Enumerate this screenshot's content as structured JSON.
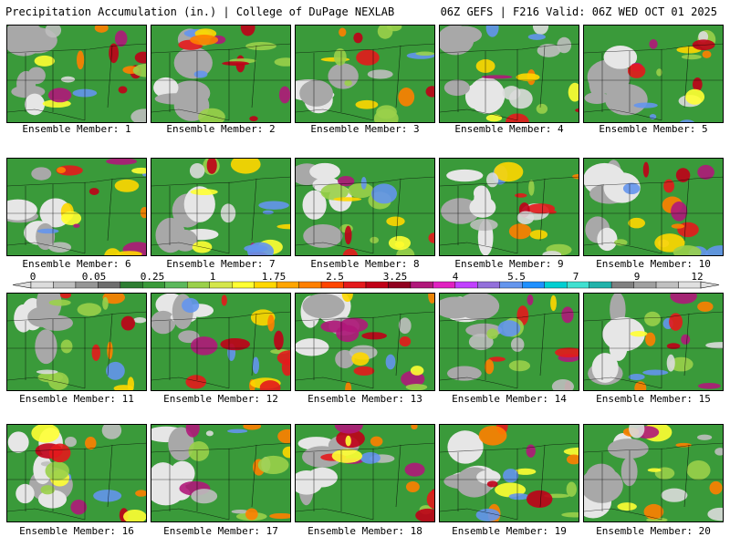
{
  "header": {
    "title_left": "Precipitation Accumulation (in.) | College of DuPage NEXLAB",
    "title_right": "06Z GEFS | F216 Valid: 06Z WED OCT 01 2025"
  },
  "members": [
    {
      "label": "Ensemble Member: 1"
    },
    {
      "label": "Ensemble Member: 2"
    },
    {
      "label": "Ensemble Member: 3"
    },
    {
      "label": "Ensemble Member: 4"
    },
    {
      "label": "Ensemble Member: 5"
    },
    {
      "label": "Ensemble Member: 6"
    },
    {
      "label": "Ensemble Member: 7"
    },
    {
      "label": "Ensemble Member: 8"
    },
    {
      "label": "Ensemble Member: 9"
    },
    {
      "label": "Ensemble Member: 10"
    },
    {
      "label": "Ensemble Member: 11"
    },
    {
      "label": "Ensemble Member: 12"
    },
    {
      "label": "Ensemble Member: 13"
    },
    {
      "label": "Ensemble Member: 14"
    },
    {
      "label": "Ensemble Member: 15"
    },
    {
      "label": "Ensemble Member: 16"
    },
    {
      "label": "Ensemble Member: 17"
    },
    {
      "label": "Ensemble Member: 18"
    },
    {
      "label": "Ensemble Member: 19"
    },
    {
      "label": "Ensemble Member: 20"
    }
  ],
  "colorbar": {
    "tick_labels": [
      "0",
      "0.05",
      "0.25",
      "1",
      "1.75",
      "2.5",
      "3.25",
      "4",
      "5.5",
      "7",
      "9",
      "12"
    ],
    "colors": [
      "#dcdcdc",
      "#bebebe",
      "#969696",
      "#6e6e6e",
      "#2e7d32",
      "#3a9a3a",
      "#5cb85c",
      "#9ad04a",
      "#d4e64a",
      "#ffff33",
      "#ffd700",
      "#ffa500",
      "#ff7f00",
      "#ff4500",
      "#e41a1c",
      "#c00018",
      "#900020",
      "#b0187a",
      "#e020c0",
      "#c040ff",
      "#9370db",
      "#6495ed",
      "#1e90ff",
      "#00ced1",
      "#40e0d0",
      "#20b2aa",
      "#808080",
      "#a0a0a0",
      "#c0c0c0",
      "#e0e0e0"
    ]
  }
}
